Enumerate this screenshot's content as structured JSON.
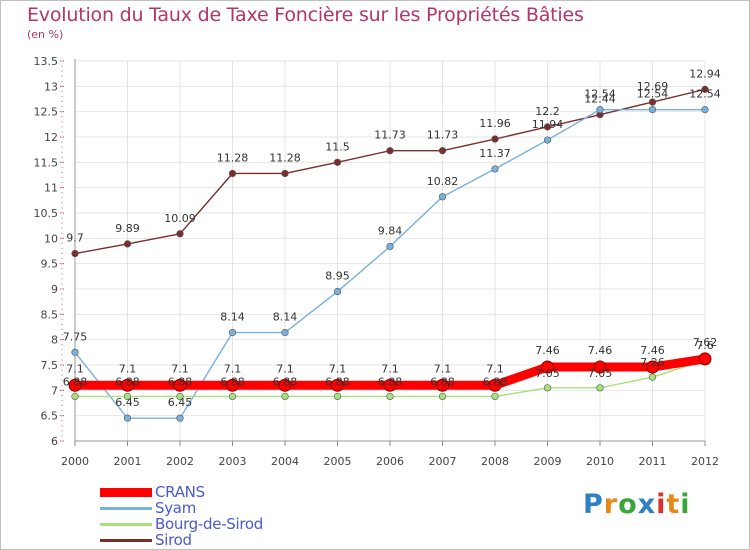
{
  "chart_data": {
    "type": "line",
    "title": "Evolution du Taux de Taxe Foncière sur les Propriétés Bâties",
    "unit_label": "(en %)",
    "xlabel": "",
    "ylabel": "",
    "x": [
      "2000",
      "2001",
      "2002",
      "2003",
      "2004",
      "2005",
      "2006",
      "2007",
      "2008",
      "2009",
      "2010",
      "2011",
      "2012"
    ],
    "ylim": [
      6,
      13.5
    ],
    "yticks": [
      "6",
      "6.5",
      "7",
      "7.5",
      "8",
      "8.5",
      "9",
      "9.5",
      "10",
      "10.5",
      "11",
      "11.5",
      "12",
      "12.5",
      "13",
      "13.5"
    ],
    "series": [
      {
        "name": "CRANS",
        "color": "#ff0000",
        "values": [
          7.1,
          7.1,
          7.1,
          7.1,
          7.1,
          7.1,
          7.1,
          7.1,
          7.1,
          7.46,
          7.46,
          7.46,
          7.62
        ],
        "labels": [
          "7.1",
          "7.1",
          "7.1",
          "7.1",
          "7.1",
          "7.1",
          "7.1",
          "7.1",
          "7.1",
          "7.46",
          "7.46",
          "7.46",
          "7.62"
        ]
      },
      {
        "name": "Syam",
        "color": "#7ab0dc",
        "values": [
          7.75,
          6.45,
          6.45,
          8.14,
          8.14,
          8.95,
          9.84,
          10.82,
          11.37,
          11.94,
          12.54,
          12.54,
          12.54
        ],
        "labels": [
          "7.75",
          "6.45",
          "6.45",
          "8.14",
          "8.14",
          "8.95",
          "9.84",
          "10.82",
          "11.37",
          "11.94",
          "12.54",
          "12.54",
          "12.54"
        ]
      },
      {
        "name": "Bourg-de-Sirod",
        "color": "#a8e07a",
        "values": [
          6.88,
          6.88,
          6.88,
          6.88,
          6.88,
          6.88,
          6.88,
          6.88,
          6.88,
          7.05,
          7.05,
          7.26,
          7.6
        ],
        "labels": [
          "6.88",
          "6.88",
          "6.88",
          "6.88",
          "6.88",
          "6.88",
          "6.88",
          "6.88",
          "6.88",
          "7.05",
          "7.05",
          "7.26",
          "7.6"
        ]
      },
      {
        "name": "Sirod",
        "color": "#7a2e2e",
        "values": [
          9.7,
          9.89,
          10.09,
          11.28,
          11.28,
          11.5,
          11.73,
          11.73,
          11.96,
          12.2,
          12.44,
          12.69,
          12.94
        ],
        "labels": [
          "9.7",
          "9.89",
          "10.09",
          "11.28",
          "11.28",
          "11.5",
          "11.73",
          "11.73",
          "11.96",
          "12.2",
          "12.44",
          "12.69",
          "12.94"
        ]
      }
    ]
  },
  "brand": {
    "letters": [
      "P",
      "r",
      "o",
      "x",
      "i",
      "t",
      "i"
    ],
    "colors": [
      "#2f7fc7",
      "#e58a1a",
      "#3aa63a",
      "#2f7fc7",
      "#d9332a",
      "#e58a1a",
      "#3aa63a"
    ]
  }
}
